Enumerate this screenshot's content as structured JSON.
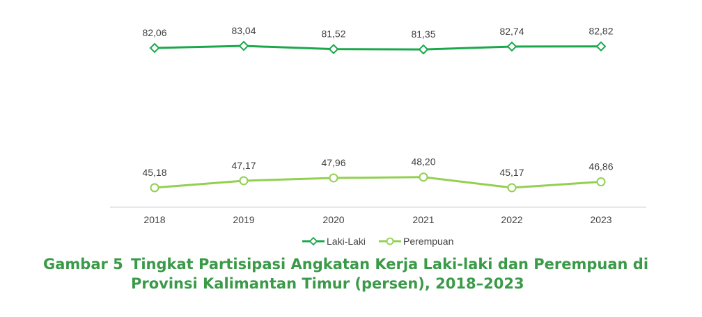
{
  "chart_data": {
    "type": "line",
    "title": "",
    "xlabel": "",
    "ylabel": "",
    "x": [
      "2018",
      "2019",
      "2020",
      "2021",
      "2022",
      "2023"
    ],
    "series": [
      {
        "name": "Laki-Laki",
        "color": "#1aa84a",
        "marker": "diamond",
        "values": [
          82.06,
          83.04,
          81.52,
          81.35,
          82.74,
          82.82
        ],
        "labels": [
          "82,06",
          "83,04",
          "81,52",
          "81,35",
          "82,74",
          "82,82"
        ]
      },
      {
        "name": "Perempuan",
        "color": "#92d050",
        "marker": "circle",
        "values": [
          45.18,
          47.17,
          47.96,
          48.2,
          45.17,
          46.86
        ],
        "labels": [
          "45,18",
          "47,17",
          "47,96",
          "48,20",
          "45,17",
          "46,86"
        ]
      }
    ],
    "ylim": [
      40,
      90
    ],
    "grid": false,
    "legend": "bottom"
  },
  "caption": {
    "figure_number": "Gambar 5",
    "title": "Tingkat Partisipasi Angkatan Kerja Laki-laki dan Perempuan di Provinsi Kalimantan Timur (persen), 2018–2023",
    "color": "#3a9a48"
  }
}
